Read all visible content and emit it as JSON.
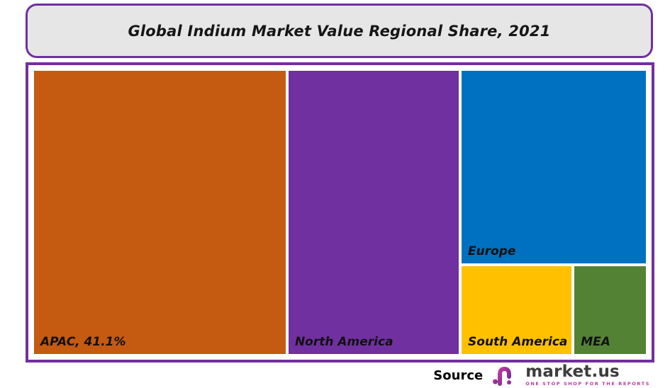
{
  "header": {
    "title": "Global Indium Market Value Regional Share, 2021",
    "border_color": "#7030A0",
    "background": "#E7E6E6"
  },
  "chart": {
    "border_color": "#7030A0",
    "background": "#FFFFFF",
    "gap_color": "#FFFFFF"
  },
  "chart_data": {
    "type": "treemap",
    "title": "Global Indium Market Value Regional Share, 2021",
    "legend": "none",
    "regions": [
      {
        "name": "APAC",
        "label": "APAC, 41.1%",
        "share_pct": 41.1,
        "color": "#C55A11"
      },
      {
        "name": "North America",
        "label": "North America",
        "share_pct": 27.8,
        "color": "#7030A0"
      },
      {
        "name": "Europe",
        "label": "Europe",
        "share_pct": 20.7,
        "color": "#0070C0"
      },
      {
        "name": "South America",
        "label": "South America",
        "share_pct": 5.7,
        "color": "#FFC000"
      },
      {
        "name": "MEA",
        "label": "MEA",
        "share_pct": 3.7,
        "color": "#548235"
      }
    ]
  },
  "footer": {
    "source_label": "Source",
    "brand": "market.us",
    "brand_tagline": "ONE STOP SHOP FOR THE REPORTS",
    "brand_color": "#8E2A9C",
    "brand_text_color": "#3D3D3D"
  }
}
